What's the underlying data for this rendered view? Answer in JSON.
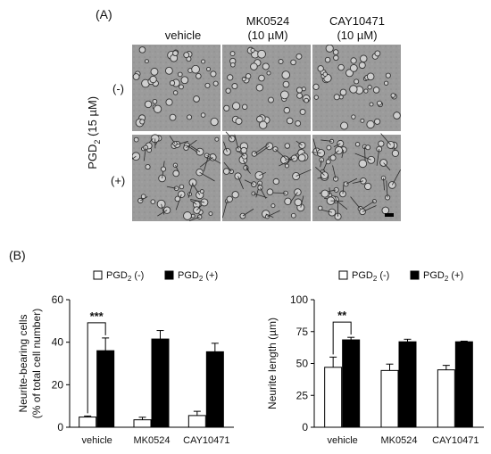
{
  "panel_a": {
    "label": "(A)",
    "columns": [
      {
        "line1": "vehicle",
        "line2": ""
      },
      {
        "line1": "MK0524",
        "line2": "(10 µM)"
      },
      {
        "line1": "CAY10471",
        "line2": "(10 µM)"
      }
    ],
    "pgd_prefix": "PGD",
    "pgd_sub": "2",
    "pgd_suffix": " (15 µM)",
    "row_minus": "(-)",
    "row_plus": "(+)"
  },
  "panel_b": {
    "label": "(B)"
  },
  "chart_data": [
    {
      "type": "bar",
      "legend": [
        {
          "prefix": "PGD",
          "sub": "2",
          "suffix": " (-)",
          "color": "#ffffff"
        },
        {
          "prefix": "PGD",
          "sub": "2",
          "suffix": " (+)",
          "color": "#000000"
        }
      ],
      "legend_position": "top",
      "categories": [
        "vehicle",
        "MK0524",
        "CAY10471"
      ],
      "series": [
        {
          "values": [
            4.8,
            3.5,
            5.5
          ],
          "errors": [
            0.5,
            1.2,
            2.0
          ],
          "color": "#ffffff"
        },
        {
          "values": [
            36,
            41.5,
            35.5
          ],
          "errors": [
            6,
            4,
            4
          ],
          "color": "#000000"
        }
      ],
      "ylabel_line1": "Neurite-bearing cells",
      "ylabel_line2": "(% of total cell number)",
      "ylim": [
        0,
        60
      ],
      "yticks": [
        0,
        20,
        40,
        60
      ],
      "significance": {
        "category": "vehicle",
        "label": "***"
      },
      "grid": false
    },
    {
      "type": "bar",
      "legend": [
        {
          "prefix": "PGD",
          "sub": "2",
          "suffix": " (-)",
          "color": "#ffffff"
        },
        {
          "prefix": "PGD",
          "sub": "2",
          "suffix": " (+)",
          "color": "#000000"
        }
      ],
      "legend_position": "top",
      "categories": [
        "vehicle",
        "MK0524",
        "CAY10471"
      ],
      "series": [
        {
          "values": [
            47,
            44.5,
            45
          ],
          "errors": [
            8,
            5,
            3.5
          ],
          "color": "#ffffff"
        },
        {
          "values": [
            68.5,
            67,
            67
          ],
          "errors": [
            2,
            2,
            0.5
          ],
          "color": "#000000"
        }
      ],
      "ylabel_line1": "Neurite length (µm)",
      "ylabel_line2": "",
      "ylim": [
        0,
        100
      ],
      "yticks": [
        0,
        25,
        50,
        75,
        100
      ],
      "significance": {
        "category": "vehicle",
        "label": "**"
      },
      "grid": false
    }
  ]
}
